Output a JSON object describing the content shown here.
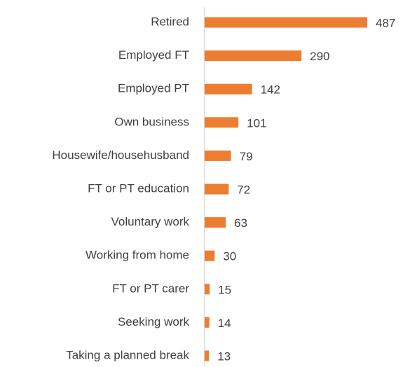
{
  "chart_data": {
    "type": "bar",
    "orientation": "horizontal",
    "categories": [
      "Retired",
      "Employed FT",
      "Employed PT",
      "Own business",
      "Housewife/househusband",
      "FT or PT education",
      "Voluntary work",
      "Working from home",
      "FT or PT carer",
      "Seeking work",
      "Taking a planned break"
    ],
    "values": [
      487,
      290,
      142,
      101,
      79,
      72,
      63,
      30,
      15,
      14,
      13
    ],
    "color": "#ed7d31"
  }
}
